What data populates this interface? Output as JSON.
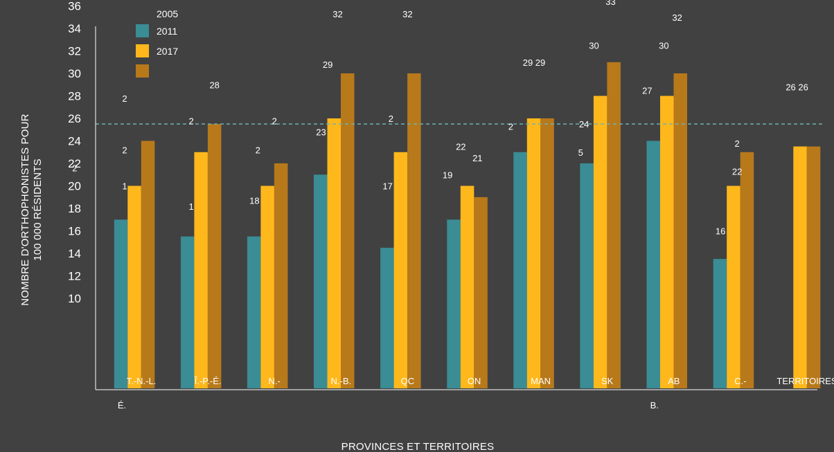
{
  "chart_data": {
    "type": "bar",
    "title": "",
    "xlabel": "PROVINCES ET TERRITOIRES",
    "ylabel": "NOMBRE D'ORTHOPHONISTES POUR 100 000 RÉSIDENTS",
    "ylabel_lines": [
      "NOMBRE D'ORTHOPHONISTES POUR",
      "100 000 RÉSIDENTS"
    ],
    "categories": [
      "T.-N.-L.",
      "Î.-P.-É.",
      "N.-",
      "N.-B.",
      "QC",
      "ON",
      "MAN",
      "SK",
      "AB",
      "C.-",
      "TERRITOIRES"
    ],
    "category_sublabels": [
      "É.",
      "",
      "",
      "",
      "",
      "",
      "",
      "",
      "B.",
      "",
      ""
    ],
    "ylim": [
      0,
      36
    ],
    "yticks": [
      36,
      34,
      32,
      30,
      28,
      26,
      24,
      22,
      20,
      18,
      16,
      14,
      12,
      10
    ],
    "average_line": 25.5,
    "grid": false,
    "legend_position": "top-left",
    "legend_extra_label": "2005",
    "series": [
      {
        "name": "2011",
        "color": "#3a8c95",
        "values": [
          17,
          15.5,
          15.5,
          21,
          14.5,
          17,
          23,
          22,
          24,
          13.5,
          null
        ]
      },
      {
        "name": "2017",
        "color": "#ffb81c",
        "values": [
          20,
          23,
          20,
          26,
          23,
          20,
          26,
          28,
          28,
          20,
          23.5
        ]
      },
      {
        "name": "",
        "color": "#b8791b",
        "values": [
          24,
          25.5,
          22,
          30,
          30,
          19,
          26,
          31,
          30,
          23,
          23.5
        ]
      }
    ],
    "data_labels": [
      {
        "text": "1",
        "cat": 0,
        "val": 20
      },
      {
        "text": "2",
        "cat": 0,
        "val": 23.2
      },
      {
        "text": "2",
        "cat": 0,
        "val": 27.8
      },
      {
        "text": "2",
        "cat": -0.75,
        "val": 21.6
      },
      {
        "text": "1",
        "cat": 1,
        "val": 18.2
      },
      {
        "text": "2",
        "cat": 1,
        "val": 25.8
      },
      {
        "text": "28",
        "cat": 1.35,
        "val": 29
      },
      {
        "text": "18",
        "cat": 1.95,
        "val": 18.7
      },
      {
        "text": "2",
        "cat": 2,
        "val": 23.2
      },
      {
        "text": "2",
        "cat": 2.25,
        "val": 25.8
      },
      {
        "text": "23",
        "cat": 2.95,
        "val": 24.8
      },
      {
        "text": "29",
        "cat": 3.05,
        "val": 30.8
      },
      {
        "text": "32",
        "cat": 3.2,
        "val": 35.3
      },
      {
        "text": "17",
        "cat": 3.95,
        "val": 20
      },
      {
        "text": "2",
        "cat": 4,
        "val": 26
      },
      {
        "text": "32",
        "cat": 4.25,
        "val": 35.3
      },
      {
        "text": "19",
        "cat": 4.85,
        "val": 21
      },
      {
        "text": "22",
        "cat": 5.05,
        "val": 23.5
      },
      {
        "text": "21",
        "cat": 5.3,
        "val": 22.5
      },
      {
        "text": "2",
        "cat": 5.8,
        "val": 25.3
      },
      {
        "text": "29 29",
        "cat": 6.15,
        "val": 31
      },
      {
        "text": "24",
        "cat": 6.9,
        "val": 25.5
      },
      {
        "text": "5",
        "cat": 6.85,
        "val": 23
      },
      {
        "text": "30",
        "cat": 7.05,
        "val": 32.5
      },
      {
        "text": "33",
        "cat": 7.3,
        "val": 36.4
      },
      {
        "text": "27",
        "cat": 7.85,
        "val": 28.5
      },
      {
        "text": "30",
        "cat": 8.1,
        "val": 32.5
      },
      {
        "text": "32",
        "cat": 8.3,
        "val": 35
      },
      {
        "text": "2",
        "cat": 9.2,
        "val": 23.8
      },
      {
        "text": "22",
        "cat": 9.2,
        "val": 21.3
      },
      {
        "text": "16",
        "cat": 8.95,
        "val": 16
      },
      {
        "text": "26 26",
        "cat": 10.1,
        "val": 28.8
      }
    ]
  }
}
